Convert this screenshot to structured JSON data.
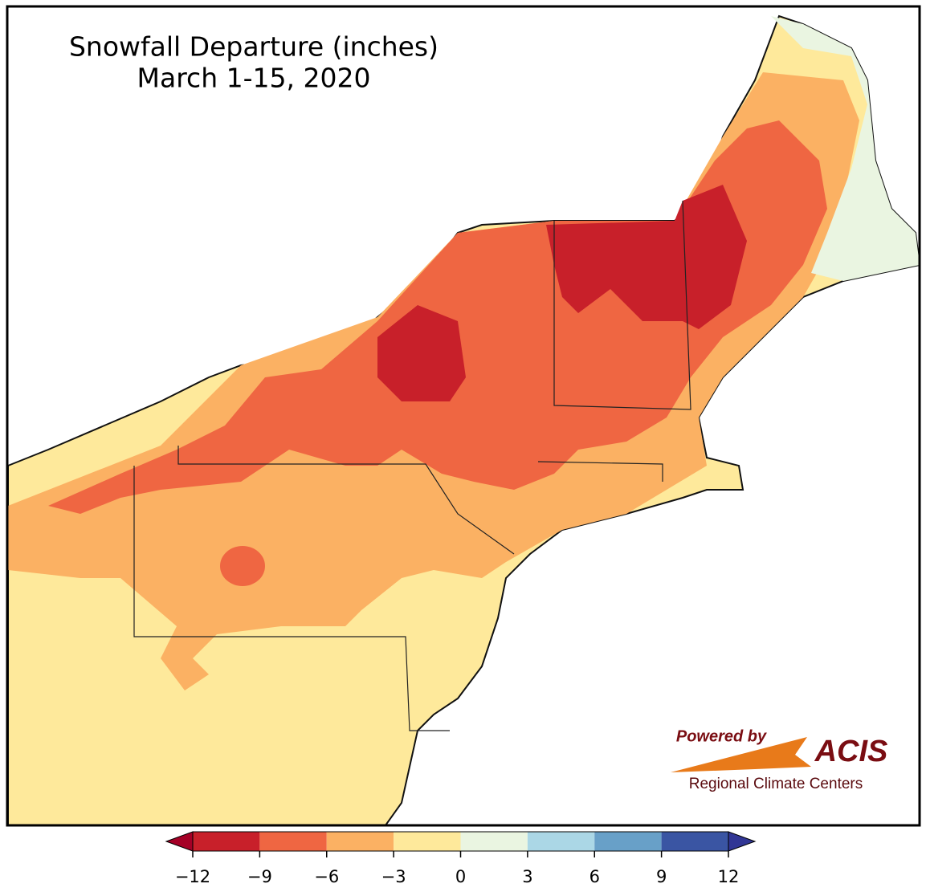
{
  "title": "Snowfall Departure (inches)",
  "subtitle": "March 1-15, 2020",
  "colorbar": {
    "lim": [
      -12,
      12
    ],
    "ticks": [
      {
        "value": -12,
        "label": "−12"
      },
      {
        "value": -9,
        "label": "−9"
      },
      {
        "value": -6,
        "label": "−6"
      },
      {
        "value": -3,
        "label": "−3"
      },
      0,
      3,
      6,
      9,
      12
    ],
    "colors": [
      "#c8202a",
      "#ef6642",
      "#fbb163",
      "#fee99b",
      "#eaf5e1",
      "#abd7e6",
      "#68a0c8",
      "#3a55a3"
    ],
    "under_color": "#a50026",
    "over_color": "#313695"
  },
  "logo": {
    "powered_by": "Powered by",
    "name": "ACIS",
    "org": "Regional Climate Centers"
  }
}
